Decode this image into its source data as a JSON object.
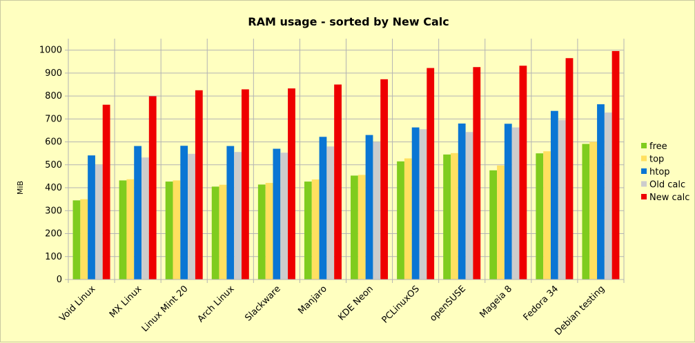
{
  "chart_data": {
    "type": "bar",
    "title": "RAM usage - sorted by New Calc",
    "xlabel": "",
    "ylabel": "MiB",
    "ylim": [
      0,
      1050
    ],
    "yticks": [
      0,
      100,
      200,
      300,
      400,
      500,
      600,
      700,
      800,
      900,
      1000
    ],
    "grid": true,
    "legend_position": "right",
    "categories": [
      "Void Linux",
      "MX Linux",
      "Linux Mint 20",
      "Arch Linux",
      "Slackware",
      "Manjaro",
      "KDE Neon",
      "PCLinuxOS",
      "openSUSE",
      "Mageia 8",
      "Fedora 34",
      "Debian testing"
    ],
    "series": [
      {
        "name": "free",
        "color": "#7fcc1e",
        "values": [
          345,
          432,
          427,
          405,
          414,
          427,
          453,
          515,
          545,
          476,
          550,
          591
        ]
      },
      {
        "name": "top",
        "color": "#ffe060",
        "values": [
          350,
          437,
          432,
          413,
          421,
          436,
          456,
          528,
          551,
          497,
          559,
          600
        ]
      },
      {
        "name": "htop",
        "color": "#0a76d4",
        "values": [
          541,
          582,
          583,
          582,
          570,
          622,
          630,
          663,
          680,
          679,
          735,
          764
        ]
      },
      {
        "name": "Old calc",
        "color": "#cccccc",
        "values": [
          500,
          532,
          548,
          556,
          553,
          580,
          599,
          655,
          643,
          663,
          695,
          728
        ]
      },
      {
        "name": "New calc",
        "color": "#ee0000",
        "values": [
          762,
          799,
          825,
          829,
          833,
          850,
          873,
          922,
          926,
          932,
          965,
          996
        ]
      }
    ]
  }
}
